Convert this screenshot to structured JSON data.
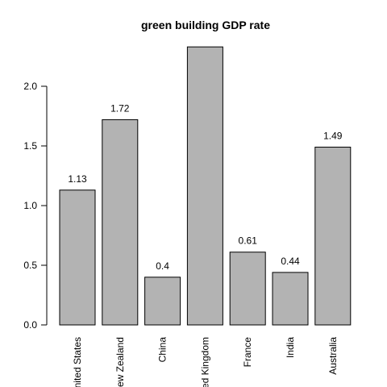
{
  "chart_data": {
    "type": "bar",
    "title": "green building GDP rate",
    "xlabel": "",
    "ylabel": "",
    "categories": [
      "United States",
      "New Zealand",
      "China",
      "United Kingdom",
      "France",
      "India",
      "Australia"
    ],
    "values": [
      1.13,
      1.72,
      0.4,
      2.33,
      0.61,
      0.44,
      1.49
    ],
    "data_labels": [
      "1.13",
      "1.72",
      "0.4",
      "",
      "0.61",
      "0.44",
      "1.49"
    ],
    "ylim": [
      0,
      2.5
    ],
    "yticks": [
      0.0,
      0.5,
      1.0,
      1.5,
      2.0
    ],
    "ytick_labels": [
      "0.0",
      "0.5",
      "1.0",
      "1.5",
      "2.0"
    ],
    "bar_color": "#b3b3b3",
    "grid": false,
    "legend": "none"
  }
}
